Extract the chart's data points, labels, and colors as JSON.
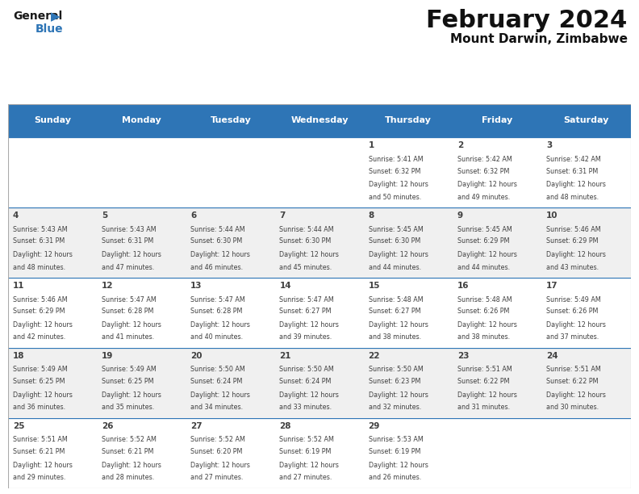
{
  "title": "February 2024",
  "subtitle": "Mount Darwin, Zimbabwe",
  "header_color": "#2E75B6",
  "header_text_color": "#FFFFFF",
  "background_color": "#FFFFFF",
  "cell_alt_color": "#F0F0F0",
  "cell_white_color": "#FFFFFF",
  "border_color": "#2E75B6",
  "text_color": "#404040",
  "logo_black": "#1a1a1a",
  "logo_blue": "#2E75B6",
  "days_of_week": [
    "Sunday",
    "Monday",
    "Tuesday",
    "Wednesday",
    "Thursday",
    "Friday",
    "Saturday"
  ],
  "calendar_data": [
    [
      {
        "day": "",
        "sunrise": "",
        "sunset": "",
        "daylight_h": "",
        "daylight_m": ""
      },
      {
        "day": "",
        "sunrise": "",
        "sunset": "",
        "daylight_h": "",
        "daylight_m": ""
      },
      {
        "day": "",
        "sunrise": "",
        "sunset": "",
        "daylight_h": "",
        "daylight_m": ""
      },
      {
        "day": "",
        "sunrise": "",
        "sunset": "",
        "daylight_h": "",
        "daylight_m": ""
      },
      {
        "day": "1",
        "sunrise": "5:41 AM",
        "sunset": "6:32 PM",
        "daylight_h": "12",
        "daylight_m": "50"
      },
      {
        "day": "2",
        "sunrise": "5:42 AM",
        "sunset": "6:32 PM",
        "daylight_h": "12",
        "daylight_m": "49"
      },
      {
        "day": "3",
        "sunrise": "5:42 AM",
        "sunset": "6:31 PM",
        "daylight_h": "12",
        "daylight_m": "48"
      }
    ],
    [
      {
        "day": "4",
        "sunrise": "5:43 AM",
        "sunset": "6:31 PM",
        "daylight_h": "12",
        "daylight_m": "48"
      },
      {
        "day": "5",
        "sunrise": "5:43 AM",
        "sunset": "6:31 PM",
        "daylight_h": "12",
        "daylight_m": "47"
      },
      {
        "day": "6",
        "sunrise": "5:44 AM",
        "sunset": "6:30 PM",
        "daylight_h": "12",
        "daylight_m": "46"
      },
      {
        "day": "7",
        "sunrise": "5:44 AM",
        "sunset": "6:30 PM",
        "daylight_h": "12",
        "daylight_m": "45"
      },
      {
        "day": "8",
        "sunrise": "5:45 AM",
        "sunset": "6:30 PM",
        "daylight_h": "12",
        "daylight_m": "44"
      },
      {
        "day": "9",
        "sunrise": "5:45 AM",
        "sunset": "6:29 PM",
        "daylight_h": "12",
        "daylight_m": "44"
      },
      {
        "day": "10",
        "sunrise": "5:46 AM",
        "sunset": "6:29 PM",
        "daylight_h": "12",
        "daylight_m": "43"
      }
    ],
    [
      {
        "day": "11",
        "sunrise": "5:46 AM",
        "sunset": "6:29 PM",
        "daylight_h": "12",
        "daylight_m": "42"
      },
      {
        "day": "12",
        "sunrise": "5:47 AM",
        "sunset": "6:28 PM",
        "daylight_h": "12",
        "daylight_m": "41"
      },
      {
        "day": "13",
        "sunrise": "5:47 AM",
        "sunset": "6:28 PM",
        "daylight_h": "12",
        "daylight_m": "40"
      },
      {
        "day": "14",
        "sunrise": "5:47 AM",
        "sunset": "6:27 PM",
        "daylight_h": "12",
        "daylight_m": "39"
      },
      {
        "day": "15",
        "sunrise": "5:48 AM",
        "sunset": "6:27 PM",
        "daylight_h": "12",
        "daylight_m": "38"
      },
      {
        "day": "16",
        "sunrise": "5:48 AM",
        "sunset": "6:26 PM",
        "daylight_h": "12",
        "daylight_m": "38"
      },
      {
        "day": "17",
        "sunrise": "5:49 AM",
        "sunset": "6:26 PM",
        "daylight_h": "12",
        "daylight_m": "37"
      }
    ],
    [
      {
        "day": "18",
        "sunrise": "5:49 AM",
        "sunset": "6:25 PM",
        "daylight_h": "12",
        "daylight_m": "36"
      },
      {
        "day": "19",
        "sunrise": "5:49 AM",
        "sunset": "6:25 PM",
        "daylight_h": "12",
        "daylight_m": "35"
      },
      {
        "day": "20",
        "sunrise": "5:50 AM",
        "sunset": "6:24 PM",
        "daylight_h": "12",
        "daylight_m": "34"
      },
      {
        "day": "21",
        "sunrise": "5:50 AM",
        "sunset": "6:24 PM",
        "daylight_h": "12",
        "daylight_m": "33"
      },
      {
        "day": "22",
        "sunrise": "5:50 AM",
        "sunset": "6:23 PM",
        "daylight_h": "12",
        "daylight_m": "32"
      },
      {
        "day": "23",
        "sunrise": "5:51 AM",
        "sunset": "6:22 PM",
        "daylight_h": "12",
        "daylight_m": "31"
      },
      {
        "day": "24",
        "sunrise": "5:51 AM",
        "sunset": "6:22 PM",
        "daylight_h": "12",
        "daylight_m": "30"
      }
    ],
    [
      {
        "day": "25",
        "sunrise": "5:51 AM",
        "sunset": "6:21 PM",
        "daylight_h": "12",
        "daylight_m": "29"
      },
      {
        "day": "26",
        "sunrise": "5:52 AM",
        "sunset": "6:21 PM",
        "daylight_h": "12",
        "daylight_m": "28"
      },
      {
        "day": "27",
        "sunrise": "5:52 AM",
        "sunset": "6:20 PM",
        "daylight_h": "12",
        "daylight_m": "27"
      },
      {
        "day": "28",
        "sunrise": "5:52 AM",
        "sunset": "6:19 PM",
        "daylight_h": "12",
        "daylight_m": "27"
      },
      {
        "day": "29",
        "sunrise": "5:53 AM",
        "sunset": "6:19 PM",
        "daylight_h": "12",
        "daylight_m": "26"
      },
      {
        "day": "",
        "sunrise": "",
        "sunset": "",
        "daylight_h": "",
        "daylight_m": ""
      },
      {
        "day": "",
        "sunrise": "",
        "sunset": "",
        "daylight_h": "",
        "daylight_m": ""
      }
    ]
  ]
}
